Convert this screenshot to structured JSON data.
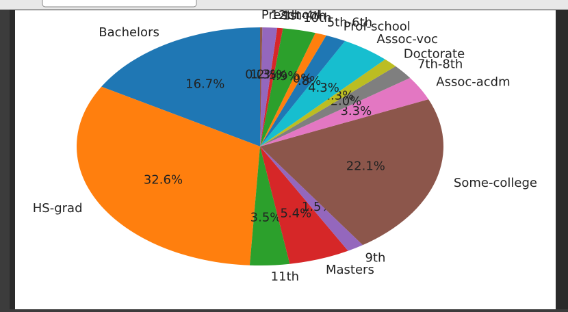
{
  "chart_data": {
    "type": "pie",
    "start_angle": 90,
    "direction": "counterclockwise",
    "categories": [
      "Bachelors",
      "HS-grad",
      "11th",
      "Masters",
      "9th",
      "Some-college",
      "Assoc-acdm",
      "7th-8th",
      "Doctorate",
      "Assoc-voc",
      "Prof-school",
      "5th-6th",
      "10th",
      "1st-4th",
      "12th",
      "Preschool"
    ],
    "values": [
      16.7,
      32.6,
      3.5,
      5.4,
      1.5,
      22.1,
      3.3,
      2.0,
      1.3,
      4.3,
      1.8,
      1.0,
      2.9,
      0.5,
      1.3,
      0.2
    ],
    "value_labels": [
      "16.7%",
      "32.6%",
      "3.5%",
      "5.4%",
      "1.5%",
      "22.1%",
      "3.3%",
      "2.0%",
      "1.3%",
      "4.3%",
      "1.8%",
      "1.0%",
      "2.9%",
      "0.5%",
      "1.3%",
      "0.2%"
    ],
    "colors": [
      "#1f77b4",
      "#ff7f0e",
      "#2ca02c",
      "#d62728",
      "#9467bd",
      "#8c564b",
      "#e377c2",
      "#7f7f7f",
      "#bcbd22",
      "#17becf",
      "#1f77b4",
      "#ff7f0e",
      "#2ca02c",
      "#d62728",
      "#9467bd",
      "#8c564b"
    ]
  }
}
